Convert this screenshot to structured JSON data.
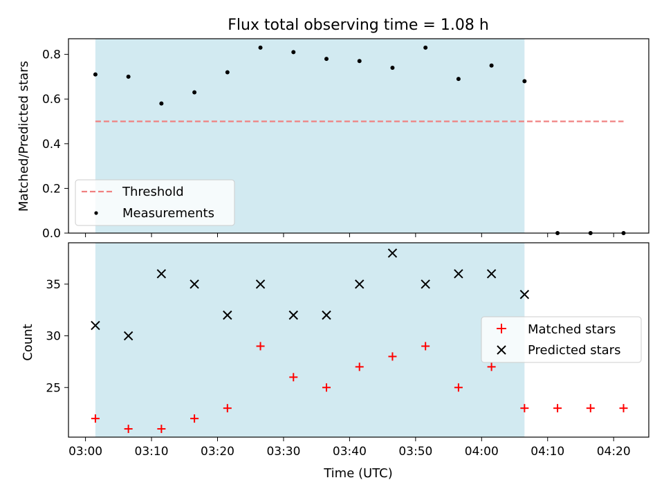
{
  "chart_data": [
    {
      "type": "scatter",
      "title": "Flux total observing time = 1.08 h",
      "xlabel": "",
      "ylabel": "Matched/Predicted stars",
      "xlim": [
        "03:01:30",
        "04:26:00"
      ],
      "ylim": [
        0,
        0.87
      ],
      "x_ticks": [
        "03:00",
        "03:10",
        "03:20",
        "03:30",
        "03:40",
        "03:50",
        "04:00",
        "04:10",
        "04:20"
      ],
      "y_ticks": [
        "0.0",
        "0.2",
        "0.4",
        "0.6",
        "0.8"
      ],
      "shaded_interval": [
        "03:01:30",
        "04:06:30"
      ],
      "shaded_color": "#add8e6",
      "legend_position": "lower-left",
      "series": [
        {
          "name": "Threshold",
          "kind": "line",
          "style": "dashed",
          "color": "#f08080",
          "x": [
            "03:01:30",
            "04:21:30"
          ],
          "y": [
            0.5,
            0.5
          ]
        },
        {
          "name": "Measurements",
          "kind": "scatter",
          "marker": "dot",
          "color": "#000000",
          "x": [
            "03:01:30",
            "03:06:30",
            "03:11:30",
            "03:16:30",
            "03:21:30",
            "03:26:30",
            "03:31:30",
            "03:36:30",
            "03:41:30",
            "03:46:30",
            "03:51:30",
            "03:56:30",
            "04:01:30",
            "04:06:30",
            "04:11:30",
            "04:16:30",
            "04:21:30"
          ],
          "y": [
            0.71,
            0.7,
            0.58,
            0.63,
            0.72,
            0.83,
            0.81,
            0.78,
            0.77,
            0.74,
            0.83,
            0.69,
            0.75,
            0.68,
            0.0,
            0.0,
            0.0
          ]
        }
      ]
    },
    {
      "type": "scatter",
      "title": "",
      "xlabel": "Time (UTC)",
      "ylabel": "Count",
      "xlim": [
        "03:01:30",
        "04:26:00"
      ],
      "ylim": [
        20,
        39
      ],
      "x_ticks": [
        "03:00",
        "03:10",
        "03:20",
        "03:30",
        "03:40",
        "03:50",
        "04:00",
        "04:10",
        "04:20"
      ],
      "y_ticks": [
        "25",
        "30",
        "35"
      ],
      "shaded_interval": [
        "03:01:30",
        "04:06:30"
      ],
      "shaded_color": "#add8e6",
      "legend_position": "center-right",
      "series": [
        {
          "name": "Matched stars",
          "kind": "scatter",
          "marker": "plus",
          "color": "#ff0000",
          "x": [
            "03:01:30",
            "03:06:30",
            "03:11:30",
            "03:16:30",
            "03:21:30",
            "03:26:30",
            "03:31:30",
            "03:36:30",
            "03:41:30",
            "03:46:30",
            "03:51:30",
            "03:56:30",
            "04:01:30",
            "04:06:30",
            "04:11:30",
            "04:16:30",
            "04:21:30"
          ],
          "y": [
            22,
            21,
            21,
            22,
            23,
            29,
            26,
            25,
            27,
            28,
            29,
            25,
            27,
            23,
            23,
            23,
            23
          ]
        },
        {
          "name": "Predicted stars",
          "kind": "scatter",
          "marker": "x",
          "color": "#000000",
          "x": [
            "03:01:30",
            "03:06:30",
            "03:11:30",
            "03:16:30",
            "03:21:30",
            "03:26:30",
            "03:31:30",
            "03:36:30",
            "03:41:30",
            "03:46:30",
            "03:51:30",
            "03:56:30",
            "04:01:30",
            "04:06:30"
          ],
          "y": [
            31,
            30,
            36,
            35,
            32,
            35,
            32,
            32,
            35,
            38,
            35,
            36,
            36,
            34
          ]
        }
      ]
    }
  ]
}
